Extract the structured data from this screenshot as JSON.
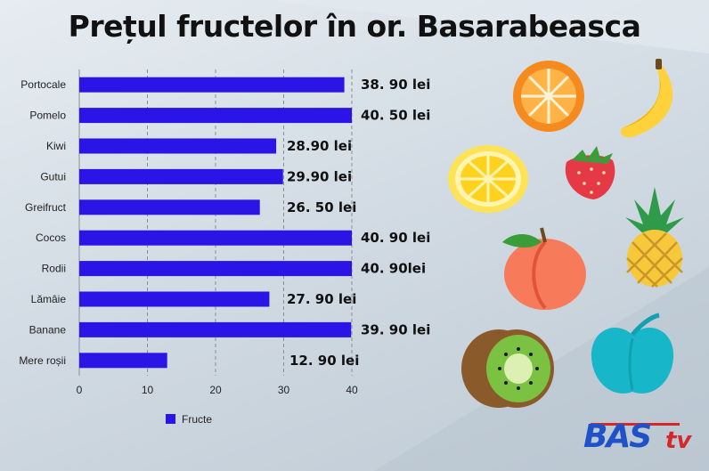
{
  "title": "Prețul fructelor în or. Basarabeasca",
  "chart_data": {
    "type": "bar",
    "orientation": "horizontal",
    "categories": [
      "Portocale",
      "Pomelo",
      "Kiwi",
      "Gutui",
      "Greifruct",
      "Cocos",
      "Rodii",
      "Lămâie",
      "Banane",
      "Mere roșii"
    ],
    "series": [
      {
        "name": "Fructe",
        "values": [
          38.9,
          40.5,
          28.9,
          29.9,
          26.5,
          40.9,
          40.9,
          27.9,
          39.9,
          12.9
        ],
        "labels": [
          "38. 90 lei",
          "40. 50 lei",
          "28.90 lei",
          "29.90 lei",
          "26. 50 lei",
          "40. 90 lei",
          "40. 90lei",
          "27. 90 lei",
          "39. 90 lei",
          "12. 90 lei"
        ]
      }
    ],
    "xlim": [
      0,
      40
    ],
    "xticks": [
      "0",
      "10",
      "20",
      "30",
      "40"
    ],
    "grid": "vertical dashed",
    "legend": "bottom-left",
    "bar_color": "#2a14e6"
  },
  "logo": {
    "main": "BAS",
    "suffix": "tv",
    "main_color": "#1f52c8",
    "suffix_color": "#d62828"
  },
  "illustrations": [
    "orange-icon",
    "banana-icon",
    "lemon-icon",
    "strawberry-icon",
    "pineapple-icon",
    "peach-icon",
    "apple-icon",
    "kiwi-icon"
  ]
}
